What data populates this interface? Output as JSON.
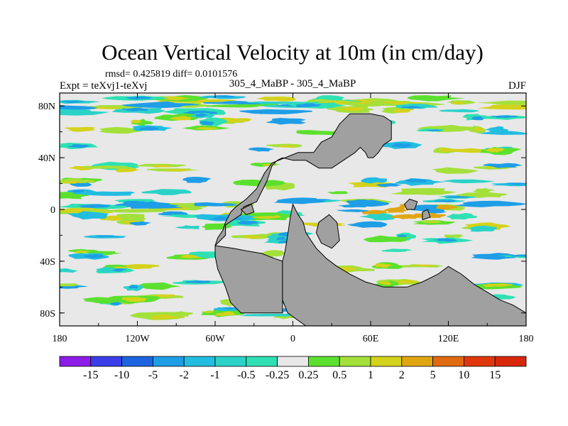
{
  "chart_data": {
    "type": "heatmap",
    "title": "Ocean Vertical Velocity at 10m (in cm/day)",
    "stats_text": "rmsd= 0.425819 diff= 0.0101576",
    "left_label": "Expt = teXvj1-teXvj",
    "center_label": "305_4_MaBP - 305_4_MaBP",
    "season": "DJF",
    "lon_range": [
      -180,
      180
    ],
    "lat_range": [
      -90,
      90
    ],
    "lon_ticks": [
      {
        "value": -180,
        "label": "180"
      },
      {
        "value": -120,
        "label": "120W"
      },
      {
        "value": -60,
        "label": "60W"
      },
      {
        "value": 0,
        "label": "0"
      },
      {
        "value": 60,
        "label": "60E"
      },
      {
        "value": 120,
        "label": "120E"
      },
      {
        "value": 180,
        "label": "180"
      }
    ],
    "lat_ticks": [
      {
        "value": 80,
        "label": "80N"
      },
      {
        "value": 40,
        "label": "40N"
      },
      {
        "value": 0,
        "label": "0"
      },
      {
        "value": -40,
        "label": "40S"
      },
      {
        "value": -80,
        "label": "80S"
      }
    ],
    "colorbar": {
      "levels": [
        "-15",
        "-10",
        "-5",
        "-2",
        "-1",
        "-0.5",
        "-0.25",
        "0.25",
        "0.5",
        "1",
        "2",
        "5",
        "10",
        "15"
      ],
      "colors": [
        "#8c1ce8",
        "#3a3ee8",
        "#1c64e0",
        "#1e9ee6",
        "#22bde0",
        "#2bd2c8",
        "#2fe0b4",
        "#e8e8e8",
        "#5ce02e",
        "#a4e03a",
        "#d4d21a",
        "#e0a612",
        "#e06a10",
        "#e0380c",
        "#d8280c"
      ]
    },
    "land_color": "#a0a0a0",
    "background_color": "#e8e8e8",
    "land_polygons": [
      [
        [
          -60,
          -28
        ],
        [
          -52,
          -20
        ],
        [
          -52,
          -12
        ],
        [
          -46,
          -8
        ],
        [
          -40,
          -4
        ],
        [
          -38,
          2
        ],
        [
          -28,
          6
        ],
        [
          -20,
          22
        ],
        [
          -16,
          34
        ],
        [
          -12,
          38
        ],
        [
          -8,
          40
        ],
        [
          0,
          38
        ],
        [
          10,
          38
        ],
        [
          20,
          32
        ],
        [
          30,
          32
        ],
        [
          36,
          36
        ],
        [
          48,
          44
        ],
        [
          52,
          48
        ],
        [
          56,
          44
        ],
        [
          58,
          40
        ],
        [
          62,
          40
        ],
        [
          66,
          44
        ],
        [
          70,
          50
        ],
        [
          76,
          54
        ],
        [
          76,
          68
        ],
        [
          70,
          72
        ],
        [
          60,
          74
        ],
        [
          44,
          74
        ],
        [
          36,
          66
        ],
        [
          30,
          56
        ],
        [
          22,
          52
        ],
        [
          16,
          44
        ],
        [
          4,
          44
        ],
        [
          -6,
          40
        ],
        [
          -16,
          36
        ],
        [
          -22,
          28
        ],
        [
          -28,
          16
        ],
        [
          -36,
          8
        ],
        [
          -44,
          2
        ],
        [
          -48,
          -2
        ],
        [
          -52,
          -10
        ],
        [
          -54,
          -16
        ],
        [
          -58,
          -22
        ]
      ],
      [
        [
          -60,
          -28
        ],
        [
          -46,
          -30
        ],
        [
          -36,
          -32
        ],
        [
          -24,
          -34
        ],
        [
          -14,
          -38
        ],
        [
          -8,
          -40
        ],
        [
          -8,
          -80
        ],
        [
          -40,
          -80
        ],
        [
          -48,
          -72
        ],
        [
          -52,
          -60
        ],
        [
          -58,
          -46
        ],
        [
          -60,
          -36
        ]
      ],
      [
        [
          -8,
          -40
        ],
        [
          -8,
          -70
        ],
        [
          -4,
          -80
        ],
        [
          10,
          -90
        ],
        [
          180,
          -90
        ],
        [
          180,
          -80
        ],
        [
          170,
          -74
        ],
        [
          160,
          -70
        ],
        [
          150,
          -64
        ],
        [
          140,
          -58
        ],
        [
          130,
          -50
        ],
        [
          120,
          -44
        ],
        [
          112,
          -50
        ],
        [
          100,
          -56
        ],
        [
          88,
          -60
        ],
        [
          70,
          -60
        ],
        [
          56,
          -56
        ],
        [
          44,
          -50
        ],
        [
          34,
          -44
        ],
        [
          26,
          -38
        ],
        [
          18,
          -30
        ],
        [
          10,
          -18
        ],
        [
          8,
          -10
        ],
        [
          4,
          -4
        ],
        [
          2,
          0
        ],
        [
          0,
          4
        ],
        [
          -2,
          -6
        ],
        [
          -4,
          -20
        ],
        [
          -6,
          -32
        ]
      ],
      [
        [
          20,
          -10
        ],
        [
          28,
          -4
        ],
        [
          34,
          -10
        ],
        [
          36,
          -24
        ],
        [
          30,
          -30
        ],
        [
          22,
          -26
        ],
        [
          18,
          -18
        ]
      ],
      [
        [
          86,
          4
        ],
        [
          90,
          8
        ],
        [
          96,
          6
        ],
        [
          94,
          0
        ],
        [
          88,
          0
        ]
      ],
      [
        [
          100,
          -2
        ],
        [
          104,
          0
        ],
        [
          106,
          -6
        ],
        [
          100,
          -8
        ]
      ],
      [
        [
          -40,
          0
        ],
        [
          -32,
          4
        ],
        [
          -30,
          -2
        ],
        [
          -36,
          -4
        ]
      ]
    ],
    "high_lat_ice": [
      [
        [
          -180,
          -90
        ],
        [
          -120,
          -90
        ],
        [
          -120,
          -84
        ],
        [
          -180,
          -84
        ]
      ]
    ]
  }
}
